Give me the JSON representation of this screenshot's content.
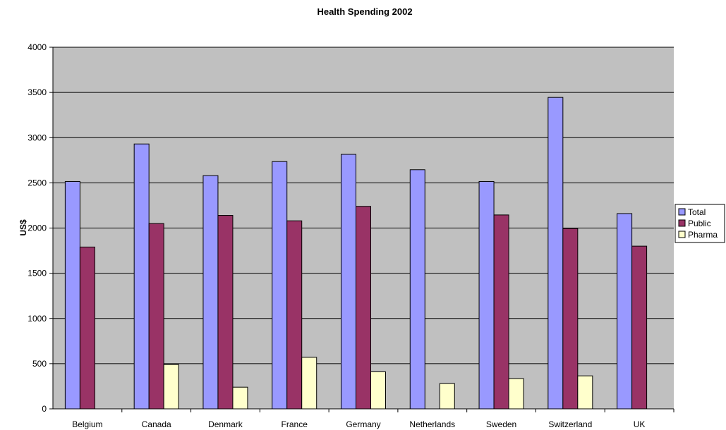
{
  "chart_data": {
    "type": "bar",
    "title": "Health Spending 2002",
    "xlabel": "",
    "ylabel": "US$",
    "ylim": [
      0,
      4000
    ],
    "yticks": [
      0,
      500,
      1000,
      1500,
      2000,
      2500,
      3000,
      3500,
      4000
    ],
    "grid": true,
    "legend_position": "right",
    "categories": [
      "Belgium",
      "Canada",
      "Denmark",
      "France",
      "Germany",
      "Netherlands",
      "Sweden",
      "Switzerland",
      "UK"
    ],
    "series": [
      {
        "name": "Total",
        "color": "#9999ff",
        "values": [
          2515,
          2930,
          2580,
          2735,
          2815,
          2645,
          2515,
          3445,
          2160
        ]
      },
      {
        "name": "Public",
        "color": "#993366",
        "values": [
          1790,
          2050,
          2140,
          2080,
          2240,
          null,
          2145,
          1995,
          1800
        ]
      },
      {
        "name": "Pharma",
        "color": "#ffffcc",
        "values": [
          null,
          490,
          240,
          570,
          410,
          280,
          335,
          365,
          null
        ]
      }
    ],
    "plot_background": "#c0c0c0"
  }
}
